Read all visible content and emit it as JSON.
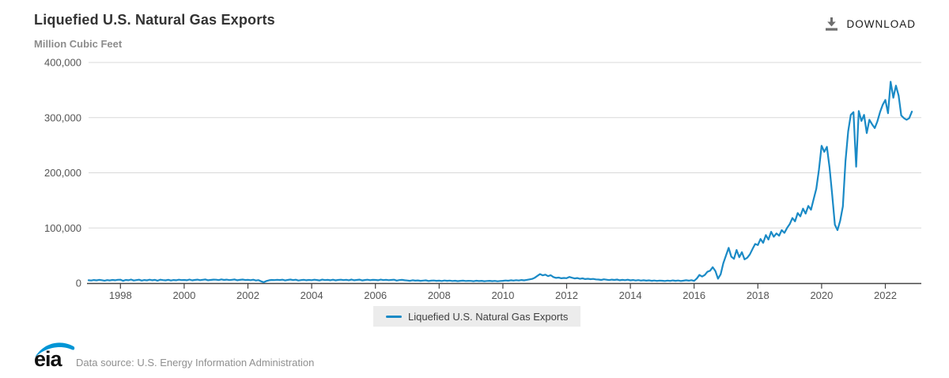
{
  "header": {
    "title": "Liquefied U.S. Natural Gas Exports",
    "subtitle": "Million Cubic Feet",
    "download_label": "DOWNLOAD"
  },
  "legend": {
    "label": "Liquefied U.S. Natural Gas Exports"
  },
  "footer": {
    "logo_text": "eia",
    "source_text": "Data source: U.S. Energy Information Administration"
  },
  "colors": {
    "line": "#1a8ac6",
    "grid": "#d9d9d9",
    "axis": "#444444",
    "tick_label": "#555555",
    "title": "#333333",
    "subtitle": "#8c8c8c",
    "legend_bg": "#ececec",
    "source_text": "#909090",
    "logo_blue": "#0095d5",
    "download_icon": "#6e6e6e"
  },
  "chart_data": {
    "type": "line",
    "title": "Liquefied U.S. Natural Gas Exports",
    "ylabel": "Million Cubic Feet",
    "xlabel": "",
    "frequency": "monthly",
    "start": "1997-01",
    "end": "2022-11",
    "ylim": [
      0,
      400000
    ],
    "grid": "horizontal",
    "legend_position": "bottom",
    "x_ticks": [
      1998,
      2000,
      2002,
      2004,
      2006,
      2008,
      2010,
      2012,
      2014,
      2016,
      2018,
      2020,
      2022
    ],
    "y_ticks": [
      0,
      100000,
      200000,
      300000,
      400000
    ],
    "y_tick_labels": [
      "0",
      "100,000",
      "200,000",
      "300,000",
      "400,000"
    ],
    "series": [
      {
        "name": "Liquefied U.S. Natural Gas Exports",
        "values": [
          5200,
          4700,
          5600,
          5000,
          5900,
          5300,
          4500,
          5400,
          4900,
          5800,
          5100,
          6000,
          6200,
          4100,
          5700,
          5200,
          6500,
          4800,
          5400,
          6100,
          4600,
          5600,
          5000,
          6200,
          5100,
          5900,
          4500,
          6200,
          5400,
          5000,
          6000,
          4700,
          5600,
          5200,
          6100,
          5500,
          5800,
          5200,
          6400,
          5000,
          5700,
          6300,
          5300,
          6000,
          6600,
          5100,
          5800,
          6300,
          6100,
          5500,
          6800,
          5800,
          6300,
          5400,
          6000,
          6600,
          5200,
          5900,
          6400,
          5600,
          5900,
          5300,
          6100,
          4800,
          5500,
          3100,
          1600,
          3900,
          5200,
          5800,
          5400,
          6000,
          5600,
          6200,
          4900,
          5700,
          6400,
          5500,
          6100,
          4800,
          5400,
          6000,
          5200,
          5800,
          5300,
          6100,
          5600,
          4900,
          6300,
          5400,
          5900,
          5100,
          6200,
          5000,
          5700,
          6100,
          5500,
          6000,
          5200,
          6500,
          5100,
          5800,
          6300,
          4900,
          5600,
          6100,
          5300,
          5900,
          5700,
          5100,
          6300,
          5500,
          6000,
          5300,
          5800,
          6200,
          4600,
          5400,
          5900,
          5200,
          4800,
          4200,
          5100,
          4500,
          4900,
          4100,
          4600,
          5000,
          3800,
          4400,
          4700,
          4200,
          4500,
          3900,
          4800,
          4200,
          4600,
          3800,
          4300,
          3600,
          4100,
          4500,
          3800,
          4200,
          4000,
          3500,
          4300,
          3700,
          4100,
          3400,
          3900,
          4200,
          3600,
          4000,
          3300,
          3800,
          4100,
          4700,
          4300,
          5100,
          4600,
          5300,
          4800,
          5600,
          5000,
          5900,
          6700,
          7600,
          9800,
          13200,
          16400,
          14100,
          15300,
          12600,
          14400,
          11000,
          9400,
          10100,
          8700,
          9300,
          8900,
          11200,
          9700,
          8400,
          9200,
          7800,
          8600,
          7300,
          7900,
          7100,
          7600,
          6800,
          6400,
          5800,
          6900,
          6100,
          5500,
          6300,
          5700,
          6500,
          5100,
          5900,
          5300,
          6100,
          5000,
          5600,
          4800,
          5400,
          4600,
          5200,
          4400,
          5000,
          4200,
          4800,
          4000,
          4600,
          4300,
          3800,
          4600,
          4000,
          4900,
          4200,
          4700,
          3900,
          4400,
          5100,
          4500,
          5300,
          4000,
          8300,
          14800,
          11900,
          14600,
          20500,
          22400,
          28800,
          22000,
          8000,
          16000,
          36000,
          50000,
          64000,
          48000,
          44000,
          60000,
          47000,
          56000,
          43000,
          46000,
          52000,
          62000,
          71000,
          69000,
          80000,
          73000,
          87000,
          79000,
          93000,
          84000,
          90000,
          86000,
          96000,
          91000,
          100000,
          107000,
          118000,
          112000,
          127000,
          121000,
          135000,
          126000,
          140000,
          133000,
          152000,
          171000,
          205000,
          249000,
          238000,
          247000,
          209000,
          160000,
          106000,
          96000,
          113000,
          139000,
          221000,
          275000,
          305000,
          310000,
          211000,
          312000,
          294000,
          305000,
          272000,
          296000,
          288000,
          281000,
          293000,
          310000,
          323000,
          332000,
          308000,
          365000,
          336000,
          358000,
          340000,
          304000,
          299000,
          296000,
          299000,
          311000
        ]
      }
    ]
  }
}
